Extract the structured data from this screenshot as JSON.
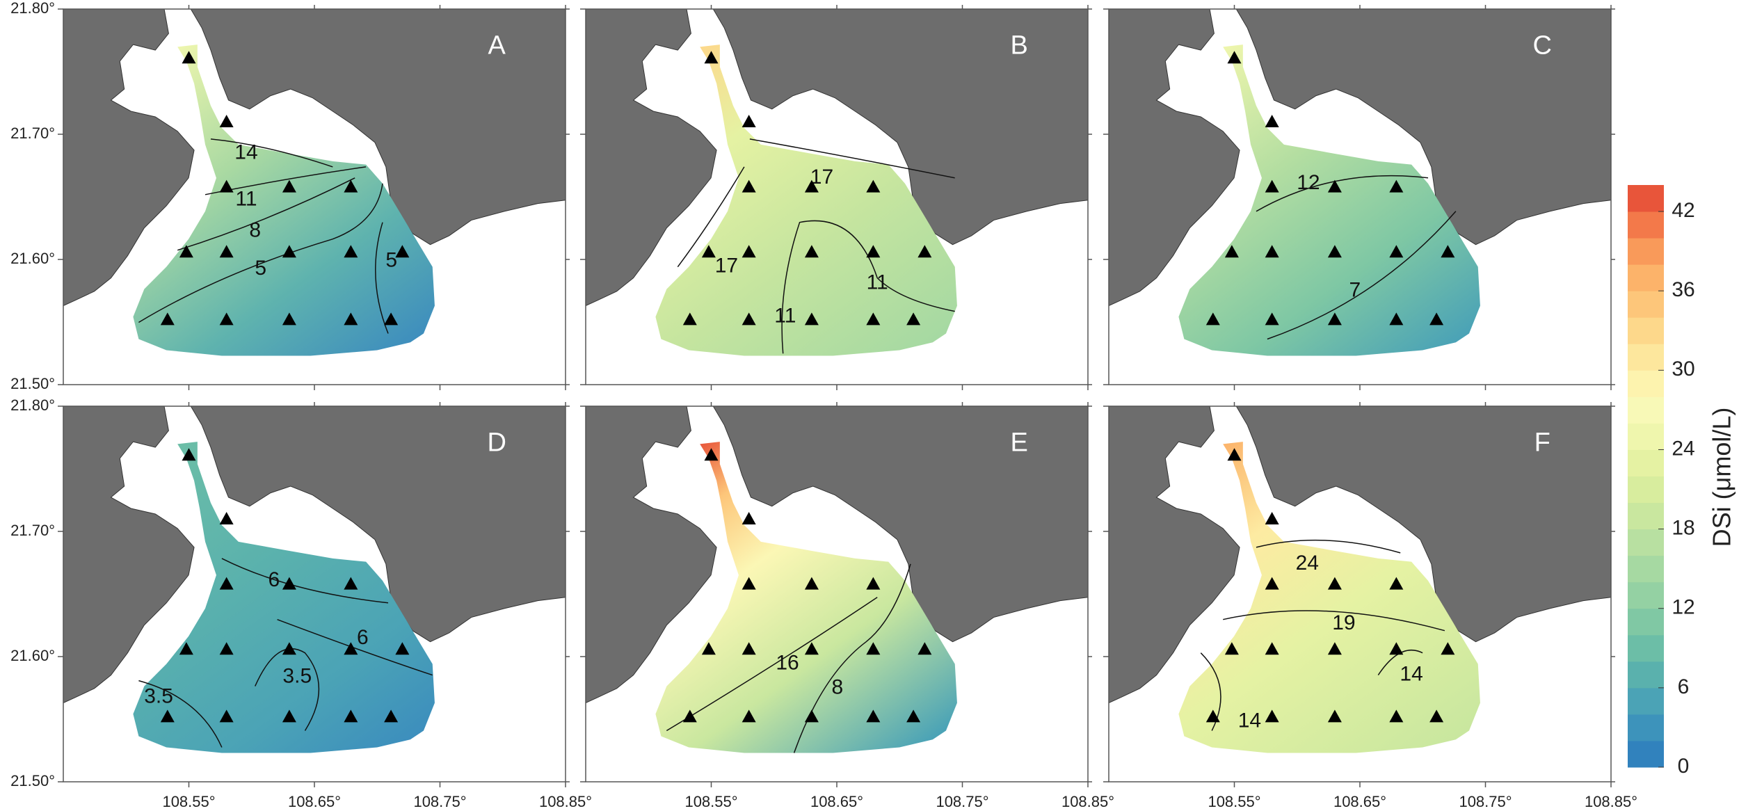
{
  "panels": [
    {
      "letter": "A",
      "contour_labels": [
        14,
        11,
        8,
        5,
        5
      ]
    },
    {
      "letter": "B",
      "contour_labels": [
        17,
        17,
        11,
        11
      ]
    },
    {
      "letter": "C",
      "contour_labels": [
        12,
        7
      ]
    },
    {
      "letter": "D",
      "contour_labels": [
        6,
        6,
        3.5,
        3.5
      ]
    },
    {
      "letter": "E",
      "contour_labels": [
        16,
        8
      ]
    },
    {
      "letter": "F",
      "contour_labels": [
        24,
        19,
        14,
        14
      ]
    }
  ],
  "axes": {
    "xlim": [
      108.45,
      108.85
    ],
    "ylim": [
      21.5,
      21.8
    ],
    "xticks": [
      {
        "value": 108.55,
        "label": "108.55°"
      },
      {
        "value": 108.65,
        "label": "108.65°"
      },
      {
        "value": 108.75,
        "label": "108.75°"
      },
      {
        "value": 108.85,
        "label": "108.85°"
      }
    ],
    "yticks": [
      {
        "value": 21.5,
        "label": "21.50°"
      },
      {
        "value": 21.6,
        "label": "21.60°"
      },
      {
        "value": 21.7,
        "label": "21.70°"
      },
      {
        "value": 21.8,
        "label": "21.80°"
      }
    ]
  },
  "stations": {
    "lon": [
      108.55,
      108.58,
      108.58,
      108.63,
      108.679,
      108.548,
      108.58,
      108.63,
      108.679,
      108.72,
      108.533,
      108.58,
      108.63,
      108.679,
      108.711
    ],
    "lat": [
      21.761,
      21.71,
      21.658,
      21.658,
      21.658,
      21.606,
      21.606,
      21.606,
      21.606,
      21.606,
      21.552,
      21.552,
      21.552,
      21.552,
      21.552
    ]
  },
  "colorbar": {
    "label": "DSi (μmol/L)",
    "lim": [
      0,
      44
    ],
    "ticks": [
      0,
      6,
      12,
      18,
      24,
      30,
      36,
      42
    ],
    "colors": [
      "#3182bd",
      "#3d93bb",
      "#4ba3b6",
      "#5ab1ad",
      "#6cbea7",
      "#80c8a4",
      "#94d1a3",
      "#a6d9a2",
      "#b8e0a1",
      "#c9e79f",
      "#d8ed9e",
      "#e5f2a3",
      "#eff6ad",
      "#f8f9b7",
      "#fdf3ae",
      "#fde79d",
      "#fdd88b",
      "#fdc67a",
      "#fcb36a",
      "#f99a5a",
      "#f3794a",
      "#e8553a"
    ]
  }
}
